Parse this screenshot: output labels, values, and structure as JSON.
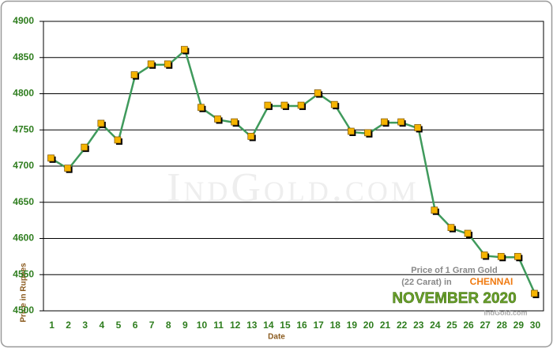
{
  "chart_data": {
    "type": "line",
    "x_label": "Date",
    "y_label": "Price in Rupees",
    "categories": [
      "1",
      "2",
      "3",
      "4",
      "5",
      "6",
      "7",
      "8",
      "9",
      "10",
      "11",
      "12",
      "13",
      "14",
      "15",
      "16",
      "17",
      "18",
      "19",
      "20",
      "21",
      "22",
      "23",
      "24",
      "25",
      "26",
      "27",
      "28",
      "29",
      "30"
    ],
    "values": [
      4710,
      4696,
      4725,
      4758,
      4735,
      4825,
      4840,
      4840,
      4860,
      4780,
      4764,
      4760,
      4740,
      4783,
      4783,
      4783,
      4800,
      4784,
      4747,
      4745,
      4760,
      4760,
      4752,
      4638,
      4614,
      4606,
      4576,
      4574,
      4574,
      4523
    ],
    "color": "#3f9a5c",
    "marker_color": "#f5b400",
    "ylim": [
      4500,
      4900
    ],
    "yticks": [
      4500,
      4550,
      4600,
      4650,
      4700,
      4750,
      4800,
      4850,
      4900
    ],
    "grid": true,
    "watermark": "IndGold.com",
    "annotation": {
      "line1": "Price of 1 Gram Gold",
      "line2": "(22 Carat) in",
      "city": "CHENNAI",
      "month": "NOVEMBER 2020",
      "site": "IndGold.com"
    }
  }
}
